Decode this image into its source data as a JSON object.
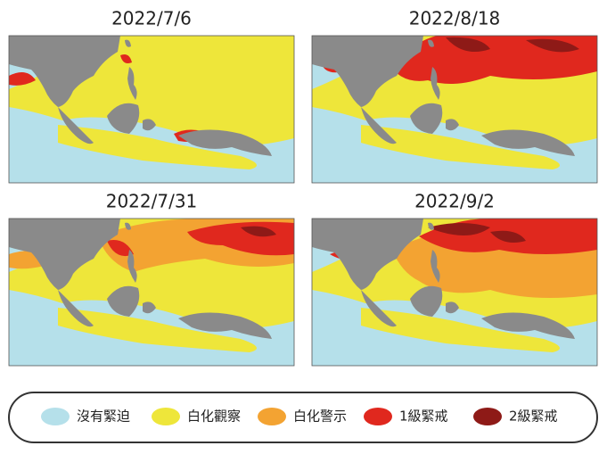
{
  "panels": [
    {
      "title": "2022/7/6"
    },
    {
      "title": "2022/8/18"
    },
    {
      "title": "2022/7/31"
    },
    {
      "title": "2022/9/2"
    }
  ],
  "legend": [
    {
      "label": "沒有緊迫",
      "color": "#b5e0ea"
    },
    {
      "label": "白化觀察",
      "color": "#eee63a"
    },
    {
      "label": "白化警示",
      "color": "#f3a332"
    },
    {
      "label": "1級緊戒",
      "color": "#e0281e"
    },
    {
      "label": "2級緊戒",
      "color": "#8e1a17"
    }
  ]
}
